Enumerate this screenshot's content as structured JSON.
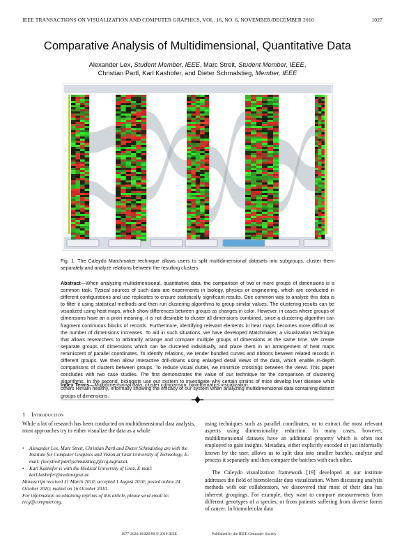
{
  "header": {
    "running_title": "IEEE TRANSACTIONS ON VISUALIZATION AND COMPUTER GRAPHICS, VOL. 16, NO. 6, NOVEMBER/DECEMBER 2010",
    "page_number": "1027"
  },
  "title": "Comparative Analysis of Multidimensional, Quantitative Data",
  "author_lines": [
    [
      {
        "text": "Alexander Lex, "
      },
      {
        "text": "Student Member, IEEE",
        "italic": true
      },
      {
        "text": ", Marc Streit, "
      },
      {
        "text": "Student Member, IEEE",
        "italic": true
      },
      {
        "text": ","
      }
    ],
    [
      {
        "text": "Christian Partl, Karl Kashofer, and Dieter Schmalstieg, "
      },
      {
        "text": "Member, IEEE",
        "italic": true
      }
    ]
  ],
  "figure": {
    "caption": "Fig. 1. The Caleydo Matchmaker technique allows users to split multidimensional datasets into subgroups, cluster them separately and analyze relations between the resulting clusters."
  },
  "abstract": {
    "label": "Abstract",
    "text": "—When analyzing multidimensional, quantitative data, the comparison of two or more groups of dimensions is a common task. Typical sources of such data are experiments in biology, physics or engineering, which are conducted in different configurations and use replicates to ensure statistically significant results. One common way to analyze this data is to filter it using statistical methods and then run clustering algorithms to group similar values. The clustering results can be visualized using heat maps, which show differences between groups as changes in color. However, in cases where groups of dimensions have an a priori meaning, it is not desirable to cluster all dimensions combined, since a clustering algorithm can fragment continuous blocks of records. Furthermore, identifying relevant elements in heat maps becomes more difficult as the number of dimensions increases. To aid in such situations, we have developed Matchmaker, a visualization technique that allows researchers to arbitrarily arrange and compare multiple groups of dimensions at the same time. We create separate groups of dimensions which can be clustered individually, and place them in an arrangement of heat maps reminiscent of parallel coordinates. To identify relations, we render bundled curves and ribbons between related records in different groups. We then allow interactive drill-downs using enlarged detail views of the data, which enable in-depth comparisons of clusters between groups. To reduce visual clutter, we minimize crossings between the views. This paper concludes with two case studies. The first demonstrates the value of our technique for the comparison of clustering algorithms. In the second, biologists use our system to investigate why certain strains of mice develop liver disease while others remain healthy, informally showing the efficacy of our system when analyzing multidimensional data containing distinct groups of dimensions."
  },
  "index_terms": {
    "label": "Index Terms",
    "text": "—Multidimensional data, cluster comparison, bioinformatics visualization."
  },
  "section": {
    "number": "1",
    "title": "Introduction"
  },
  "left_column": {
    "paragraph": "While a lot of research has been conducted on multidimensional data analysis, most approaches try to either visualize the data as a whole",
    "footnotes": [
      "Alexander Lex, Marc Streit, Christian Partl and Dieter Schmalstieg are with the Institute for Computer Graphics and Vision at Graz University of Technology, E-mail: {lex|streit|partl|schmalstieg}@icg.tugraz.at.",
      "Karl Kashofer is with the Medical University of Graz, E-mail: karl.kashofer@medunigraz.at."
    ],
    "manuscript": "Manuscript received 31 March 2010; accepted 1 August 2010; posted online 24 October 2010; mailed on 16 October 2010.",
    "reprints": "For information on obtaining reprints of this article, please send email to: tvcg@computer.org."
  },
  "right_column": {
    "paragraphs": [
      "using techniques such as parallel coordinates, or to extract the most relevant aspects using dimensionality reduction. In many cases, however, multidimensional datasets have an additional property which is often not employed to gain insights. Metadata, either explicitly encoded or just informally known by the user, allows us to split data into smaller batches, analyze and process it separately and then compare the batches with each other.",
      "The Caleydo visualization framework [19] developed at our institute addresses the field of biomolecular data visualization. When discussing analysis methods with our collaborators, we discovered that most of their data has inherent groupings. For example, they want to compare measurements from different genotypes of a species, or from patients suffering from diverse forms of cancer. In biomolecular data"
    ]
  },
  "footer": {
    "copyright": "1077-2626/10/$26.00 © 2010 IEEE",
    "publisher": "Published by the IEEE Computer Society"
  }
}
